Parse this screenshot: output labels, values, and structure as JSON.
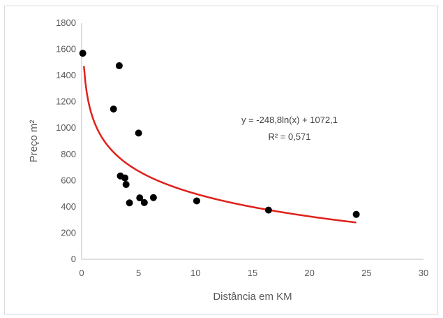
{
  "chart_data": {
    "type": "scatter",
    "title": "",
    "xlabel": "Distância em KM",
    "ylabel": "Preço m²",
    "xlim": [
      0,
      30
    ],
    "ylim": [
      0,
      1800
    ],
    "x_ticks": [
      "0",
      "5",
      "10",
      "15",
      "20",
      "25",
      "30"
    ],
    "y_ticks": [
      "0",
      "200",
      "400",
      "600",
      "800",
      "1000",
      "1200",
      "1400",
      "1600",
      "1800"
    ],
    "grid": false,
    "legend": "none",
    "point_color": "#000000",
    "trendline_color": "#e0201b",
    "series": [
      {
        "points": [
          {
            "x": 0.1,
            "y": 1570
          },
          {
            "x": 3.3,
            "y": 1475
          },
          {
            "x": 2.8,
            "y": 1145
          },
          {
            "x": 5.0,
            "y": 962
          },
          {
            "x": 3.4,
            "y": 635
          },
          {
            "x": 3.8,
            "y": 620
          },
          {
            "x": 3.9,
            "y": 570
          },
          {
            "x": 4.2,
            "y": 430
          },
          {
            "x": 5.1,
            "y": 468
          },
          {
            "x": 5.5,
            "y": 432
          },
          {
            "x": 6.3,
            "y": 470
          },
          {
            "x": 10.1,
            "y": 445
          },
          {
            "x": 16.4,
            "y": 375
          },
          {
            "x": 24.1,
            "y": 342
          }
        ]
      }
    ],
    "trendline": {
      "type": "logarithmic",
      "a": -248.8,
      "b": 1072.1,
      "x_range": [
        0.2,
        24.1
      ],
      "equation_label": "y = -248,8ln(x) + 1072,1",
      "r2_label": "R² = 0,571"
    }
  }
}
